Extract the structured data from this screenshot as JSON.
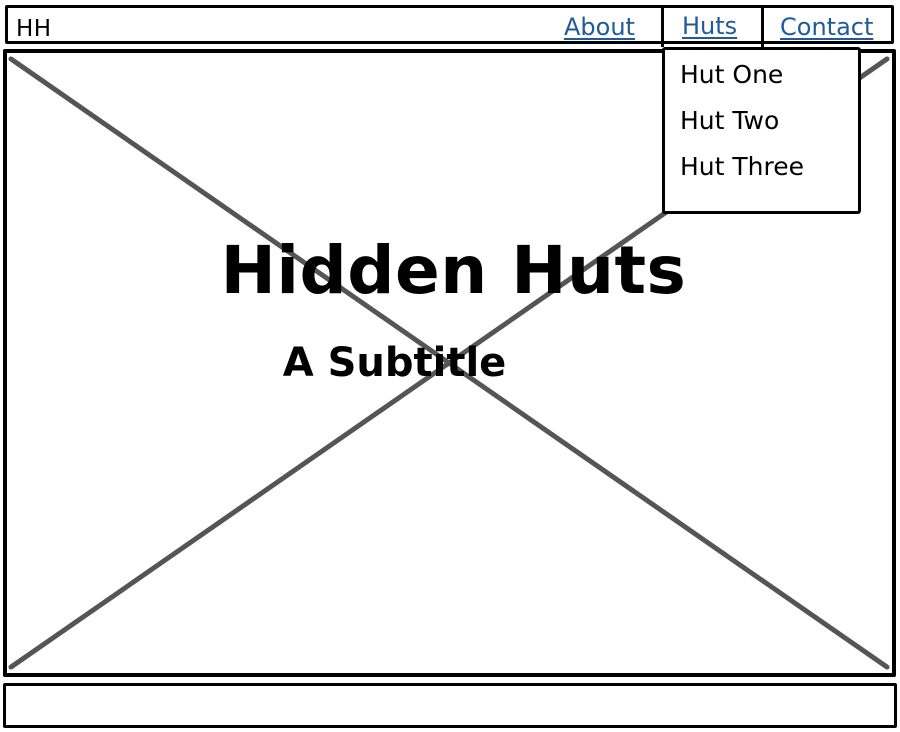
{
  "header": {
    "brand": "HH",
    "nav": {
      "about": "About",
      "huts": "Huts",
      "contact": "Contact"
    }
  },
  "dropdown": {
    "items": [
      "Hut One",
      "Hut Two",
      "Hut Three"
    ]
  },
  "hero": {
    "title": "Hidden Huts",
    "subtitle": "A Subtitle",
    "image_placeholder_icon": "image-placeholder-cross-icon"
  },
  "colors": {
    "link": "#1f5a9a",
    "border": "#000000",
    "placeholder_cross": "#555555",
    "background": "#ffffff"
  }
}
